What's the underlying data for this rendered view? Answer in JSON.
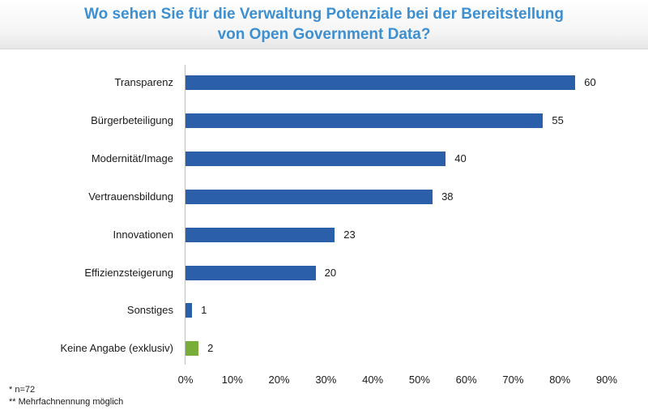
{
  "chart_data": {
    "type": "bar",
    "orientation": "horizontal",
    "title_lines": [
      "Wo sehen Sie für die Verwaltung Potenziale bei der Bereitstellung",
      "von Open Government Data?"
    ],
    "categories": [
      "Transparenz",
      "Bürgerbeteiligung",
      "Modernität/Image",
      "Vertrauensbildung",
      "Innovationen",
      "Effizienzsteigerung",
      "Sonstiges",
      "Keine Angabe (exklusiv)"
    ],
    "values": [
      60,
      55,
      40,
      38,
      23,
      20,
      1,
      2
    ],
    "percent_values": [
      83.3,
      76.4,
      55.6,
      52.8,
      31.9,
      27.8,
      1.4,
      2.8
    ],
    "value_labels": [
      "60",
      "55",
      "40",
      "38",
      "23",
      "20",
      "1",
      "2"
    ],
    "bar_colors": [
      "#2b5faa",
      "#2b5faa",
      "#2b5faa",
      "#2b5faa",
      "#2b5faa",
      "#2b5faa",
      "#2b5faa",
      "#79ad3a"
    ],
    "xlim": [
      0,
      90
    ],
    "x_ticks": [
      "0%",
      "10%",
      "20%",
      "30%",
      "40%",
      "50%",
      "60%",
      "70%",
      "80%",
      "90%"
    ],
    "xlabel": "",
    "ylabel": "",
    "grid": false
  },
  "footnotes": [
    "* n=72",
    "** Mehrfachnennung möglich"
  ]
}
